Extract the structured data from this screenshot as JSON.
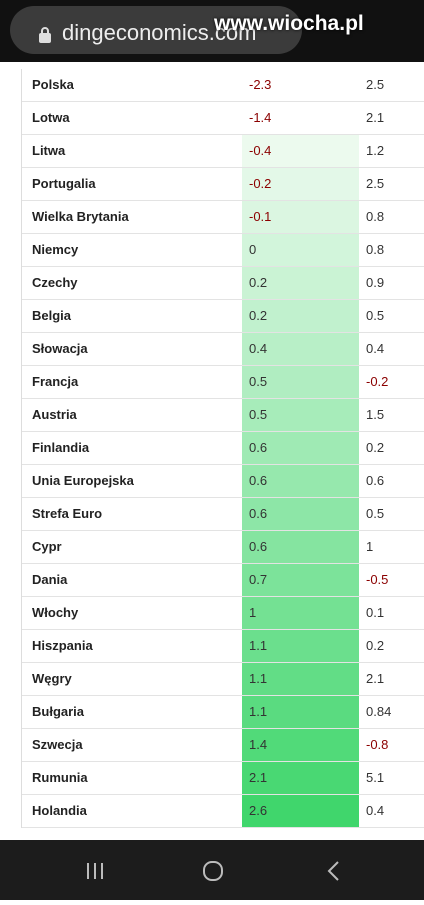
{
  "browser": {
    "url": "dingeconomics.com",
    "watermark": "www.wiocha.pl"
  },
  "table": {
    "rows": [
      [
        "Polska",
        "-2.3",
        "2.5"
      ],
      [
        "Lotwa",
        "-1.4",
        "2.1"
      ],
      [
        "Litwa",
        "-0.4",
        "1.2"
      ],
      [
        "Portugalia",
        "-0.2",
        "2.5"
      ],
      [
        "Wielka Brytania",
        "-0.1",
        "0.8"
      ],
      [
        "Niemcy",
        "0",
        "0.8"
      ],
      [
        "Czechy",
        "0.2",
        "0.9"
      ],
      [
        "Belgia",
        "0.2",
        "0.5"
      ],
      [
        "Słowacja",
        "0.4",
        "0.4"
      ],
      [
        "Francja",
        "0.5",
        "-0.2"
      ],
      [
        "Austria",
        "0.5",
        "1.5"
      ],
      [
        "Finlandia",
        "0.6",
        "0.2"
      ],
      [
        "Unia Europejska",
        "0.6",
        "0.6"
      ],
      [
        "Strefa Euro",
        "0.6",
        "0.5"
      ],
      [
        "Cypr",
        "0.6",
        "1"
      ],
      [
        "Dania",
        "0.7",
        "-0.5"
      ],
      [
        "Włochy",
        "1",
        "0.1"
      ],
      [
        "Hiszpania",
        "1.1",
        "0.2"
      ],
      [
        "Węgry",
        "1.1",
        "2.1"
      ],
      [
        "Bułgaria",
        "1.1",
        "0.84"
      ],
      [
        "Szwecja",
        "1.4",
        "-0.8"
      ],
      [
        "Rumunia",
        "2.1",
        "5.1"
      ],
      [
        "Holandia",
        "2.6",
        "0.4"
      ]
    ]
  }
}
